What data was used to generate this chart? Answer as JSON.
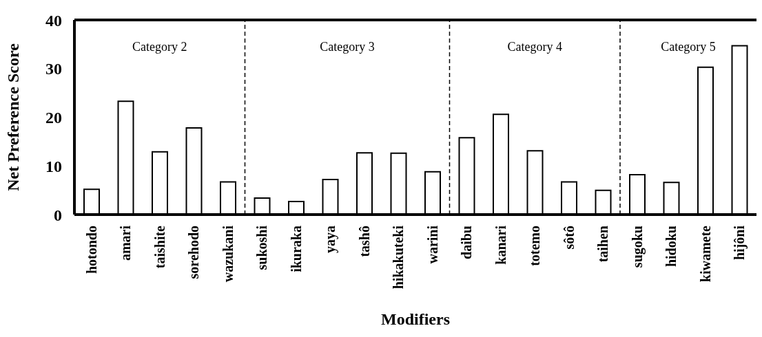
{
  "chart_data": {
    "type": "bar",
    "xlabel": "Modifiers",
    "ylabel": "Net Preference Score",
    "categories": [
      "hotondo",
      "amari",
      "taishite",
      "sorehodo",
      "wazukani",
      "sukoshi",
      "ikuraka",
      "yaya",
      "tashô",
      "hikakuteki",
      "warini",
      "daibu",
      "kanari",
      "totemo",
      "sôtô",
      "taihen",
      "sugoku",
      "hidoku",
      "kiwamete",
      "hijôni"
    ],
    "values": [
      5.2,
      23.3,
      12.9,
      17.8,
      6.7,
      3.4,
      2.7,
      7.2,
      12.7,
      12.6,
      8.8,
      15.8,
      20.6,
      13.1,
      6.7,
      5.0,
      8.2,
      6.6,
      30.3,
      34.7
    ],
    "color": "#ffffff",
    "ylim": [
      0,
      40
    ],
    "yticks": [
      0,
      10,
      20,
      30,
      40
    ],
    "annotations": [
      "Category 2",
      "Category 3",
      "Category 4",
      "Category 5"
    ]
  }
}
